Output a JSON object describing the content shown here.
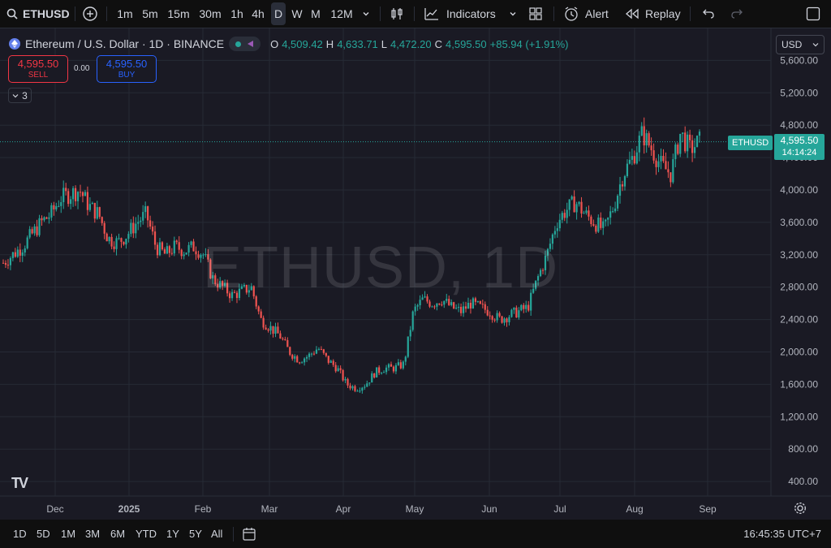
{
  "toolbar": {
    "symbol": "ETHUSD",
    "intervals": [
      "1m",
      "5m",
      "15m",
      "30m",
      "1h",
      "4h",
      "D",
      "W",
      "M",
      "12M"
    ],
    "active_interval": "D",
    "indicators_label": "Indicators",
    "alert_label": "Alert",
    "replay_label": "Replay"
  },
  "legend": {
    "title": "Ethereum / U.S. Dollar · 1D · BINANCE",
    "open_label": "O",
    "open": "4,509.42",
    "high_label": "H",
    "high": "4,633.71",
    "low_label": "L",
    "low": "4,472.20",
    "close_label": "C",
    "close": "4,595.50",
    "change": "+85.94 (+1.91%)"
  },
  "trade": {
    "sell_price": "4,595.50",
    "sell_label": "SELL",
    "spread": "0.00",
    "buy_price": "4,595.50",
    "buy_label": "BUY",
    "collapse_count": "3"
  },
  "currency": "USD",
  "price_tag": {
    "symbol": "ETHUSD",
    "price": "4,595.50",
    "countdown": "14:14:24"
  },
  "watermark": "ETHUSD, 1D",
  "colors": {
    "up": "#26a69a",
    "down": "#ef5350",
    "background": "#1a1a24",
    "grid": "#262a35"
  },
  "chart_data": {
    "type": "candlestick",
    "y_ticks": [
      "5,600.00",
      "5,200.00",
      "4,800.00",
      "4,400.00",
      "4,000.00",
      "3,600.00",
      "3,200.00",
      "2,800.00",
      "2,400.00",
      "2,000.00",
      "1,600.00",
      "1,200.00",
      "800.00",
      "400.00"
    ],
    "x_ticks": [
      "Dec",
      "2025",
      "Feb",
      "Mar",
      "Apr",
      "May",
      "Jun",
      "Jul",
      "Aug",
      "Sep"
    ],
    "ylim": [
      250,
      5750
    ],
    "last_price": 4595.5,
    "approx_closes": [
      3100,
      3200,
      3300,
      3450,
      3600,
      3700,
      3900,
      3950,
      4000,
      3800,
      3700,
      3400,
      3350,
      3450,
      3600,
      3700,
      3300,
      3200,
      3300,
      3250,
      3300,
      3200,
      2900,
      2800,
      2700,
      2750,
      2800,
      2400,
      2300,
      2200,
      2000,
      1900,
      1950,
      2050,
      1900,
      1800,
      1600,
      1550,
      1600,
      1750,
      1800,
      1800,
      1850,
      2500,
      2650,
      2600,
      2650,
      2550,
      2500,
      2600,
      2550,
      2500,
      2400,
      2450,
      2500,
      2550,
      2900,
      3200,
      3600,
      3750,
      3850,
      3700,
      3600,
      3500,
      3800,
      4200,
      4400,
      4700,
      4500,
      4300,
      4200,
      4700,
      4500,
      4600
    ]
  },
  "bottom": {
    "ranges": [
      "1D",
      "5D",
      "1M",
      "3M",
      "6M",
      "YTD",
      "1Y",
      "5Y",
      "All"
    ],
    "clock": "16:45:35 UTC+7"
  }
}
